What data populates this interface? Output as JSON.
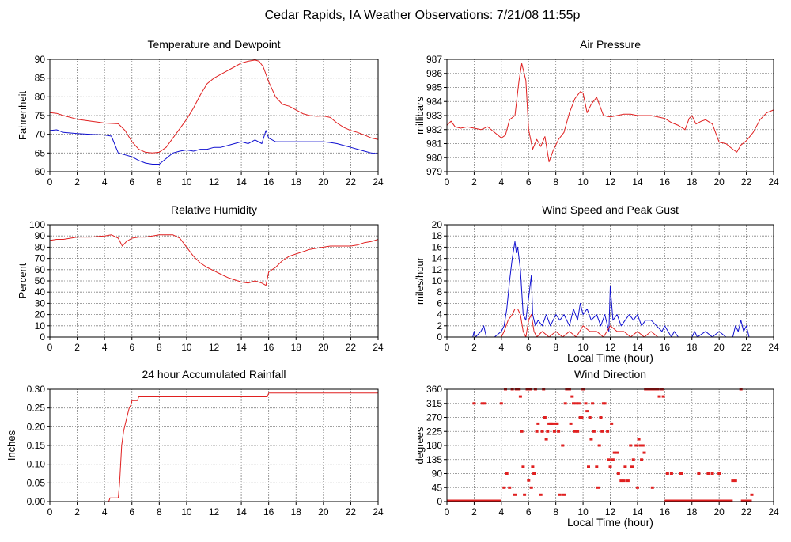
{
  "page": {
    "title": "Cedar Rapids, IA Weather Observations: 7/21/08 11:55p"
  },
  "colors": {
    "red": "#e02020",
    "blue": "#1010d0",
    "grid": "#808080"
  },
  "chart_data": [
    {
      "id": "temp",
      "type": "line",
      "title": "Temperature and Dewpoint",
      "xlabel": "",
      "ylabel": "Fahrenheit",
      "xlim": [
        0,
        24
      ],
      "ylim": [
        60,
        90
      ],
      "xticks": [
        0,
        2,
        4,
        6,
        8,
        10,
        12,
        14,
        16,
        18,
        20,
        22,
        24
      ],
      "yticks": [
        60,
        65,
        70,
        75,
        80,
        85,
        90
      ],
      "grid": true,
      "series": [
        {
          "color": "#e02020",
          "x": [
            0,
            0.5,
            1,
            2,
            3,
            4,
            5,
            5.5,
            6,
            6.5,
            7,
            7.5,
            8,
            8.5,
            9,
            9.5,
            10,
            10.5,
            11,
            11.5,
            12,
            12.5,
            13,
            13.5,
            14,
            14.5,
            15,
            15.3,
            15.6,
            16,
            16.5,
            17,
            17.5,
            18,
            18.5,
            19,
            19.5,
            20,
            20.5,
            21,
            21.5,
            22,
            22.5,
            23,
            23.5,
            24
          ],
          "y": [
            75.8,
            75.6,
            75,
            74,
            73.5,
            73,
            72.8,
            71,
            68,
            66,
            65.2,
            65,
            65.2,
            66.5,
            69,
            71.5,
            74,
            77,
            80.5,
            83.5,
            85,
            86,
            87,
            88,
            89,
            89.5,
            89.8,
            89.5,
            88,
            84,
            80,
            78,
            77.5,
            76.5,
            75.5,
            75,
            74.8,
            74.9,
            74.5,
            73,
            71.8,
            71,
            70.5,
            69.8,
            69,
            68.6
          ]
        },
        {
          "color": "#1010d0",
          "x": [
            0,
            0.5,
            1,
            2,
            3,
            4,
            4.5,
            5,
            5.5,
            6,
            6.5,
            7,
            7.5,
            8,
            8.5,
            9,
            9.5,
            10,
            10.5,
            11,
            11.5,
            12,
            12.5,
            13,
            13.5,
            14,
            14.5,
            15,
            15.5,
            15.8,
            16,
            16.5,
            17,
            17.5,
            18,
            18.5,
            19,
            19.5,
            20,
            20.5,
            21,
            21.5,
            22,
            22.5,
            23,
            23.5,
            24
          ],
          "y": [
            71,
            71.2,
            70.5,
            70.2,
            70,
            69.8,
            69.5,
            65,
            64.5,
            64,
            63,
            62.3,
            62,
            62,
            63.5,
            65,
            65.5,
            65.8,
            65.5,
            66,
            66,
            66.5,
            66.5,
            67,
            67.5,
            68,
            67.5,
            68.5,
            67.5,
            71,
            69,
            68,
            68,
            68,
            68,
            68,
            68,
            68,
            68,
            67.8,
            67.5,
            67,
            66.5,
            66,
            65.5,
            65,
            64.8
          ]
        }
      ]
    },
    {
      "id": "pres",
      "type": "line",
      "title": "Air Pressure",
      "xlabel": "",
      "ylabel": "millibars",
      "xlim": [
        0,
        24
      ],
      "ylim": [
        979,
        987
      ],
      "xticks": [
        0,
        2,
        4,
        6,
        8,
        10,
        12,
        14,
        16,
        18,
        20,
        22,
        24
      ],
      "yticks": [
        979,
        980,
        981,
        982,
        983,
        984,
        985,
        986,
        987
      ],
      "grid": true,
      "series": [
        {
          "color": "#e02020",
          "x": [
            0,
            0.3,
            0.6,
            1,
            1.5,
            2,
            2.5,
            3,
            3.5,
            4,
            4.3,
            4.6,
            5,
            5.3,
            5.5,
            5.8,
            6,
            6.3,
            6.6,
            6.9,
            7.2,
            7.5,
            7.8,
            8.2,
            8.6,
            9,
            9.4,
            9.8,
            10,
            10.3,
            10.6,
            11,
            11.5,
            12,
            12.5,
            13,
            13.5,
            14,
            14.5,
            15,
            15.5,
            16,
            16.5,
            17,
            17.5,
            17.8,
            18,
            18.3,
            18.7,
            19,
            19.5,
            20,
            20.5,
            21,
            21.3,
            21.6,
            22,
            22.5,
            23,
            23.5,
            24
          ],
          "y": [
            982.3,
            982.6,
            982.2,
            982.1,
            982.2,
            982.1,
            982.0,
            982.2,
            981.8,
            981.4,
            981.6,
            982.7,
            983.0,
            985.5,
            986.7,
            985.5,
            982.0,
            980.6,
            981.3,
            980.8,
            981.5,
            979.7,
            980.5,
            981.3,
            981.8,
            983.2,
            984.2,
            984.7,
            984.6,
            983.2,
            983.8,
            984.3,
            983.0,
            982.9,
            983.0,
            983.1,
            983.1,
            983.0,
            983.0,
            983.0,
            982.9,
            982.8,
            982.5,
            982.3,
            982.0,
            982.8,
            983.0,
            982.4,
            982.6,
            982.7,
            982.4,
            981.1,
            981.0,
            980.6,
            980.4,
            980.9,
            981.2,
            981.8,
            982.7,
            983.2,
            983.4
          ]
        }
      ]
    },
    {
      "id": "rh",
      "type": "line",
      "title": "Relative Humidity",
      "xlabel": "",
      "ylabel": "Percent",
      "xlim": [
        0,
        24
      ],
      "ylim": [
        0,
        100
      ],
      "xticks": [
        0,
        2,
        4,
        6,
        8,
        10,
        12,
        14,
        16,
        18,
        20,
        22,
        24
      ],
      "yticks": [
        0,
        10,
        20,
        30,
        40,
        50,
        60,
        70,
        80,
        90,
        100
      ],
      "grid": true,
      "series": [
        {
          "color": "#e02020",
          "x": [
            0,
            0.5,
            1,
            2,
            3,
            4,
            4.5,
            5,
            5.3,
            5.6,
            6,
            6.5,
            7,
            7.5,
            8,
            8.5,
            9,
            9.5,
            10,
            10.5,
            11,
            11.5,
            12,
            12.5,
            13,
            13.5,
            14,
            14.5,
            15,
            15.5,
            15.8,
            16,
            16.5,
            17,
            17.5,
            18,
            18.5,
            19,
            19.5,
            20,
            20.5,
            21,
            21.5,
            22,
            22.5,
            23,
            23.5,
            24
          ],
          "y": [
            86,
            87,
            87,
            89,
            89,
            90,
            91,
            88,
            81,
            85,
            88,
            89,
            89,
            90,
            91,
            91,
            91,
            88,
            80,
            72,
            66,
            62,
            59,
            56,
            53,
            51,
            49,
            48,
            50,
            48,
            46,
            58,
            62,
            68,
            72,
            74,
            76,
            78,
            79,
            80,
            81,
            81,
            81,
            81,
            82,
            84,
            85,
            87
          ]
        }
      ]
    },
    {
      "id": "wind",
      "type": "line",
      "title": "Wind Speed and Peak Gust",
      "xlabel": "Local Time (hour)",
      "ylabel": "miles/hour",
      "xlim": [
        0,
        24
      ],
      "ylim": [
        0,
        20
      ],
      "xticks": [
        0,
        2,
        4,
        6,
        8,
        10,
        12,
        14,
        16,
        18,
        20,
        22,
        24
      ],
      "yticks": [
        0,
        2,
        4,
        6,
        8,
        10,
        12,
        14,
        16,
        18,
        20
      ],
      "grid": true,
      "series": [
        {
          "color": "#1010d0",
          "x": [
            0,
            1.9,
            2,
            2.1,
            2.5,
            2.7,
            2.9,
            3.5,
            4,
            4.2,
            4.4,
            4.6,
            4.8,
            5,
            5.1,
            5.2,
            5.4,
            5.6,
            5.8,
            6,
            6.2,
            6.3,
            6.5,
            6.7,
            7,
            7.3,
            7.6,
            8,
            8.3,
            8.6,
            9,
            9.3,
            9.6,
            9.8,
            10,
            10.3,
            10.6,
            11,
            11.3,
            11.6,
            11.9,
            12,
            12.2,
            12.5,
            12.8,
            13.1,
            13.4,
            13.7,
            14,
            14.3,
            14.6,
            15,
            15.4,
            15.8,
            16,
            16.5,
            16.7,
            17,
            17.5,
            18,
            18.2,
            18.4,
            19,
            19.5,
            20,
            20.5,
            21,
            21.2,
            21.4,
            21.6,
            21.8,
            22,
            22.2,
            22.5,
            24
          ],
          "y": [
            0,
            0,
            1,
            0,
            1,
            2,
            0,
            0,
            1,
            2,
            5,
            10,
            14,
            17,
            15,
            16,
            12,
            4,
            3,
            7,
            11,
            4,
            2,
            3,
            2,
            4,
            2,
            4,
            3,
            4,
            2,
            5,
            3,
            6,
            4,
            5,
            3,
            4,
            2,
            4,
            1,
            9,
            3,
            4,
            2,
            3,
            4,
            3,
            4,
            2,
            3,
            3,
            2,
            1,
            2,
            0,
            1,
            0,
            0,
            0,
            1,
            0,
            1,
            0,
            1,
            0,
            0,
            2,
            1,
            3,
            1,
            2,
            0,
            0,
            0
          ]
        },
        {
          "color": "#e02020",
          "x": [
            0,
            4,
            4.2,
            4.5,
            4.8,
            5,
            5.2,
            5.4,
            5.6,
            5.8,
            6,
            6.2,
            6.4,
            6.6,
            7,
            7.5,
            8,
            8.5,
            9,
            9.5,
            10,
            10.5,
            11,
            11.5,
            12,
            12.5,
            13,
            13.5,
            14,
            14.5,
            15,
            15.5,
            16,
            16.5,
            24
          ],
          "y": [
            0,
            0,
            1,
            3,
            4,
            5,
            5,
            4,
            1,
            0,
            3,
            4,
            1,
            0,
            1,
            0,
            1,
            0,
            1,
            0,
            2,
            1,
            1,
            0,
            2,
            1,
            1,
            0,
            1,
            0,
            1,
            0,
            0,
            0,
            0
          ]
        }
      ]
    },
    {
      "id": "rain",
      "type": "line",
      "title": "24 hour Accumulated Rainfall",
      "xlabel": "",
      "ylabel": "Inches",
      "xlim": [
        0,
        24
      ],
      "ylim": [
        0,
        0.3
      ],
      "xticks": [
        0,
        2,
        4,
        6,
        8,
        10,
        12,
        14,
        16,
        18,
        20,
        22,
        24
      ],
      "yticks": [
        0.0,
        0.05,
        0.1,
        0.15,
        0.2,
        0.25,
        0.3
      ],
      "ytick_labels": [
        "0.00",
        "0.05",
        "0.10",
        "0.15",
        "0.20",
        "0.25",
        "0.30"
      ],
      "grid": true,
      "series": [
        {
          "color": "#e02020",
          "x": [
            0,
            4.3,
            4.4,
            5.0,
            5.1,
            5.25,
            5.4,
            5.6,
            5.8,
            5.95,
            6.0,
            6.4,
            6.5,
            15.9,
            16.0,
            24
          ],
          "y": [
            0,
            0,
            0.01,
            0.01,
            0.05,
            0.15,
            0.19,
            0.22,
            0.25,
            0.26,
            0.27,
            0.27,
            0.28,
            0.28,
            0.29,
            0.29
          ]
        }
      ]
    },
    {
      "id": "dir",
      "type": "scatter",
      "title": "Wind Direction",
      "xlabel": "Local Time (hour)",
      "ylabel": "degrees",
      "xlim": [
        0,
        24
      ],
      "ylim": [
        0,
        360
      ],
      "xticks": [
        0,
        2,
        4,
        6,
        8,
        10,
        12,
        14,
        16,
        18,
        20,
        22,
        24
      ],
      "yticks": [
        0,
        45,
        90,
        135,
        180,
        225,
        270,
        315,
        360
      ],
      "grid": true,
      "marker_color": "#e02020",
      "zero_segments": [
        [
          0,
          4
        ],
        [
          16,
          21
        ],
        [
          21.6,
          22.4
        ]
      ],
      "series": [
        {
          "x": [
            2,
            2.6,
            2.8,
            4,
            4.2,
            4.3,
            4.4,
            4.6,
            4.8,
            5,
            5.1,
            5.3,
            5.4,
            5.5,
            5.6,
            5.7,
            5.9,
            6,
            6.1,
            6.2,
            6.3,
            6.4,
            6.5,
            6.6,
            6.7,
            6.9,
            7,
            7.1,
            7.2,
            7.3,
            7.4,
            7.5,
            7.6,
            7.7,
            7.8,
            7.9,
            8,
            8.1,
            8.2,
            8.3,
            8.5,
            8.6,
            8.7,
            8.8,
            9,
            9.1,
            9.2,
            9.3,
            9.4,
            9.5,
            9.6,
            9.7,
            9.8,
            9.9,
            10,
            10.2,
            10.3,
            10.4,
            10.5,
            10.6,
            10.7,
            10.8,
            11,
            11.1,
            11.2,
            11.3,
            11.4,
            11.5,
            11.6,
            11.8,
            11.9,
            12,
            12.1,
            12.2,
            12.3,
            12.5,
            12.6,
            12.8,
            13,
            13.1,
            13.3,
            13.5,
            13.6,
            13.7,
            13.9,
            14,
            14.1,
            14.2,
            14.3,
            14.4,
            14.5,
            14.6,
            14.7,
            14.8,
            15,
            15.1,
            15.2,
            15.3,
            15.5,
            15.6,
            15.8,
            15.9,
            16.2,
            16.5,
            17.2,
            18.5,
            19.2,
            19.5,
            20,
            21,
            21.2,
            21.6,
            22.4
          ],
          "y": [
            315,
            315,
            315,
            315,
            45,
            360,
            90,
            45,
            360,
            22,
            360,
            360,
            337,
            225,
            112,
            22,
            360,
            68,
            360,
            45,
            112,
            90,
            360,
            225,
            250,
            22,
            225,
            360,
            270,
            200,
            225,
            250,
            250,
            250,
            250,
            225,
            250,
            250,
            225,
            22,
            180,
            22,
            315,
            360,
            360,
            250,
            337,
            315,
            225,
            315,
            225,
            315,
            270,
            270,
            360,
            315,
            290,
            112,
            270,
            200,
            315,
            225,
            112,
            45,
            180,
            270,
            225,
            315,
            315,
            225,
            135,
            112,
            250,
            135,
            157,
            157,
            90,
            67,
            67,
            112,
            67,
            180,
            112,
            135,
            180,
            45,
            200,
            180,
            135,
            180,
            157,
            360,
            360,
            360,
            360,
            45,
            360,
            360,
            360,
            337,
            360,
            337,
            90,
            90,
            90,
            90,
            90,
            90,
            90,
            67,
            67,
            360,
            22
          ]
        }
      ]
    }
  ]
}
